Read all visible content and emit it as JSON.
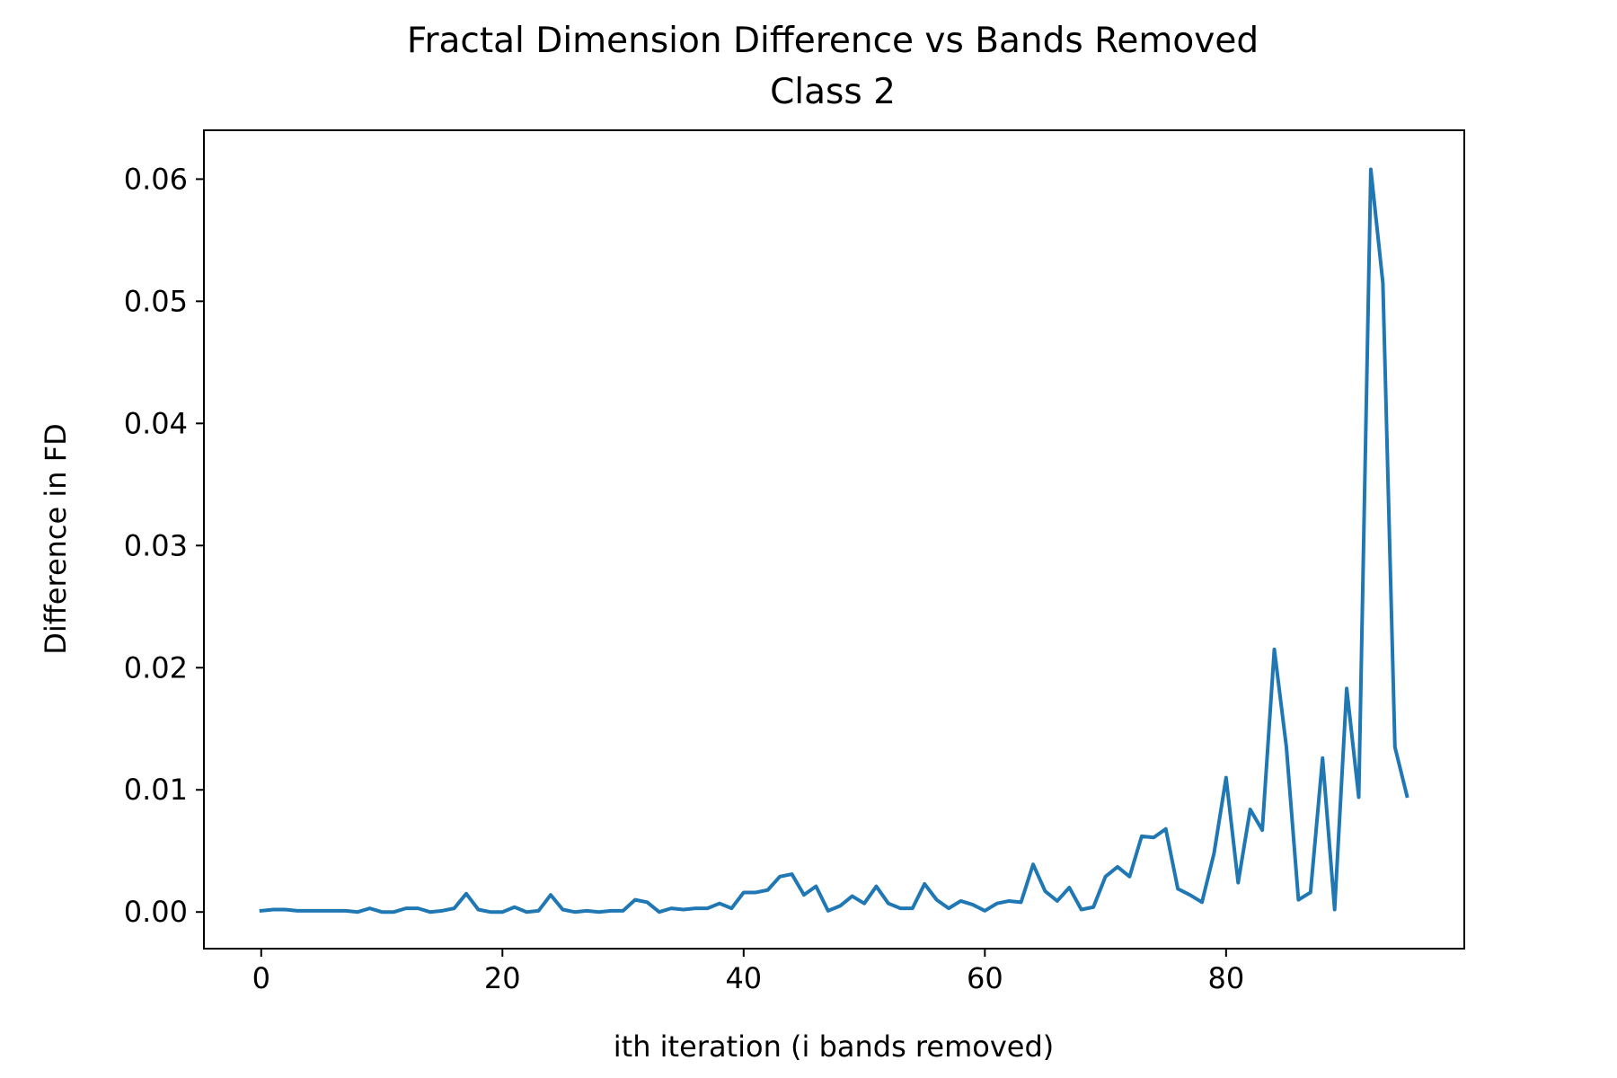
{
  "chart_data": {
    "type": "line",
    "title": "Fractal Dimension Difference vs Bands Removed",
    "subtitle": "Class 2",
    "xlabel": "ith iteration (i bands removed)",
    "ylabel": "Difference in FD",
    "xlim": [
      -4.75,
      99.75
    ],
    "ylim": [
      -0.003,
      0.064
    ],
    "xticks": [
      0,
      20,
      40,
      60,
      80
    ],
    "xtick_labels": [
      "0",
      "20",
      "40",
      "60",
      "80"
    ],
    "yticks": [
      0.0,
      0.01,
      0.02,
      0.03,
      0.04,
      0.05,
      0.06
    ],
    "ytick_labels": [
      "0.00",
      "0.01",
      "0.02",
      "0.03",
      "0.04",
      "0.05",
      "0.06"
    ],
    "grid": false,
    "line_color": "#1f77b4",
    "series": [
      {
        "x": [
          0,
          1,
          2,
          3,
          4,
          5,
          6,
          7,
          8,
          9,
          10,
          11,
          12,
          13,
          14,
          15,
          16,
          17,
          18,
          19,
          20,
          21,
          22,
          23,
          24,
          25,
          26,
          27,
          28,
          29,
          30,
          31,
          32,
          33,
          34,
          35,
          36,
          37,
          38,
          39,
          40,
          41,
          42,
          43,
          44,
          45,
          46,
          47,
          48,
          49,
          50,
          51,
          52,
          53,
          54,
          55,
          56,
          57,
          58,
          59,
          60,
          61,
          62,
          63,
          64,
          65,
          66,
          67,
          68,
          69,
          70,
          71,
          72,
          73,
          74,
          75,
          76,
          77,
          78,
          79,
          80,
          81,
          82,
          83,
          84,
          85,
          86,
          87,
          88,
          89,
          90,
          91,
          92,
          93,
          94,
          95
        ],
        "values": [
          0.0001,
          0.0002,
          0.0002,
          0.0001,
          0.0001,
          0.0001,
          0.0001,
          0.0001,
          0.0,
          0.0003,
          0.0,
          0.0,
          0.0003,
          0.0003,
          0.0,
          0.0001,
          0.0003,
          0.0015,
          0.0002,
          0.0,
          0.0,
          0.0004,
          0.0,
          0.0001,
          0.0014,
          0.0002,
          0.0,
          0.0001,
          0.0,
          0.0001,
          0.0001,
          0.001,
          0.0008,
          0.0,
          0.0003,
          0.0002,
          0.0003,
          0.0003,
          0.0007,
          0.0003,
          0.0016,
          0.0016,
          0.0018,
          0.0029,
          0.0031,
          0.0014,
          0.0021,
          0.0001,
          0.0005,
          0.0013,
          0.0007,
          0.0021,
          0.0007,
          0.0003,
          0.0003,
          0.0023,
          0.001,
          0.0003,
          0.0009,
          0.0006,
          0.0001,
          0.0007,
          0.0009,
          0.0008,
          0.0039,
          0.0017,
          0.0009,
          0.002,
          0.0002,
          0.0004,
          0.0029,
          0.0037,
          0.0029,
          0.0062,
          0.0061,
          0.0068,
          0.0019,
          0.0014,
          0.0008,
          0.0048,
          0.011,
          0.0024,
          0.0084,
          0.0067,
          0.0215,
          0.0135,
          0.001,
          0.0016,
          0.0126,
          0.0002,
          0.0183,
          0.0094,
          0.0608,
          0.0515,
          0.0135,
          0.0095
        ]
      }
    ]
  }
}
